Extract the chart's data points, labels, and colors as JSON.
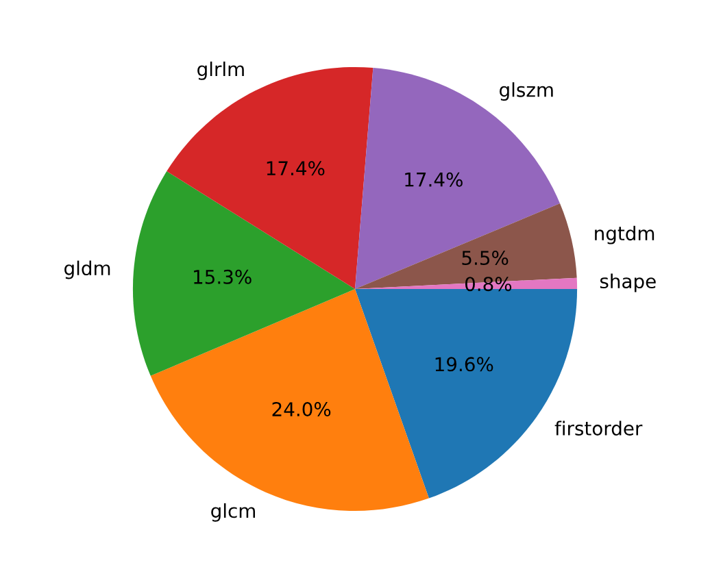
{
  "chart_data": {
    "type": "pie",
    "categories": [
      "firstorder",
      "glcm",
      "gldm",
      "glrlm",
      "glszm",
      "ngtdm",
      "shape"
    ],
    "values": [
      19.6,
      24.0,
      15.3,
      17.4,
      17.4,
      5.5,
      0.8
    ],
    "colors": [
      "#1f77b4",
      "#ff7f0e",
      "#2ca02c",
      "#d62728",
      "#9467bd",
      "#8c564b",
      "#e377c2"
    ],
    "value_labels": [
      "19.6%",
      "24.0%",
      "15.3%",
      "17.4%",
      "17.4%",
      "5.5%",
      "0.8%"
    ],
    "legend": false
  }
}
